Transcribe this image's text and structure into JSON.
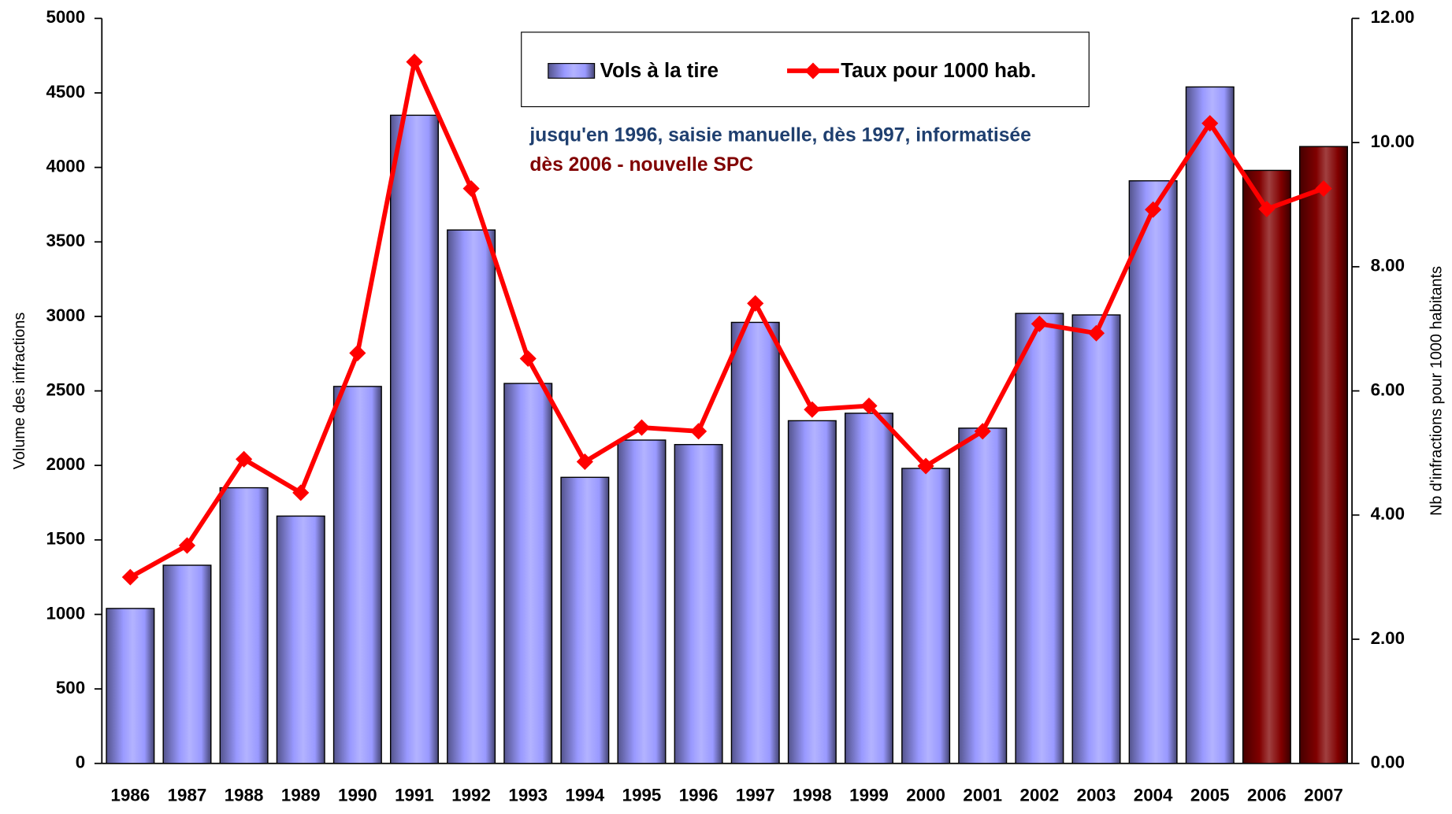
{
  "chart_data": {
    "type": "bar_line",
    "categories": [
      "1986",
      "1987",
      "1988",
      "1989",
      "1990",
      "1991",
      "1992",
      "1993",
      "1994",
      "1995",
      "1996",
      "1997",
      "1998",
      "1999",
      "2000",
      "2001",
      "2002",
      "2003",
      "2004",
      "2005",
      "2006",
      "2007"
    ],
    "series": [
      {
        "name": "Vols à la tire",
        "type": "bar",
        "color": "#9999ff",
        "colors": [
          "#9999ff",
          "#9999ff",
          "#9999ff",
          "#9999ff",
          "#9999ff",
          "#9999ff",
          "#9999ff",
          "#9999ff",
          "#9999ff",
          "#9999ff",
          "#9999ff",
          "#9999ff",
          "#9999ff",
          "#9999ff",
          "#9999ff",
          "#9999ff",
          "#9999ff",
          "#9999ff",
          "#9999ff",
          "#9999ff",
          "#800000",
          "#800000"
        ],
        "values": [
          1040,
          1330,
          1850,
          1660,
          2530,
          4350,
          3580,
          2550,
          1920,
          2170,
          2140,
          2960,
          2300,
          2350,
          1980,
          2250,
          3020,
          3010,
          3910,
          4540,
          3980,
          4140
        ]
      },
      {
        "name": "Taux pour 1000 hab.",
        "type": "line",
        "axis": "y2",
        "color": "#ff0000",
        "values": [
          3.0,
          3.51,
          4.9,
          4.36,
          6.61,
          11.3,
          9.26,
          6.52,
          4.86,
          5.41,
          5.35,
          7.41,
          5.7,
          5.76,
          4.79,
          5.35,
          7.08,
          6.93,
          8.92,
          10.31,
          8.93,
          9.26
        ]
      }
    ],
    "ylabel": "Volume des infractions",
    "y2label": "Nb d'infractions pour 1000 habitants",
    "ylim": [
      0,
      5000
    ],
    "yticks": [
      0,
      500,
      1000,
      1500,
      2000,
      2500,
      3000,
      3500,
      4000,
      4500,
      5000
    ],
    "y2lim": [
      0,
      12
    ],
    "y2ticks": [
      {
        "value": 0,
        "label": "0.00"
      },
      {
        "value": 2,
        "label": "2.00"
      },
      {
        "value": 4,
        "label": "4.00"
      },
      {
        "value": 6,
        "label": "6.00"
      },
      {
        "value": 8,
        "label": "8.00"
      },
      {
        "value": 10,
        "label": "10.00"
      },
      {
        "value": 12,
        "label": "12.00"
      }
    ],
    "annotations": [
      {
        "text": "jusqu'en 1996, saisie manuelle, dès 1997, informatisée",
        "color": "#1f3f6f"
      },
      {
        "text": "dès 2006 -  nouvelle SPC",
        "color": "#800000"
      }
    ],
    "legend": "top-center",
    "grid": false
  }
}
